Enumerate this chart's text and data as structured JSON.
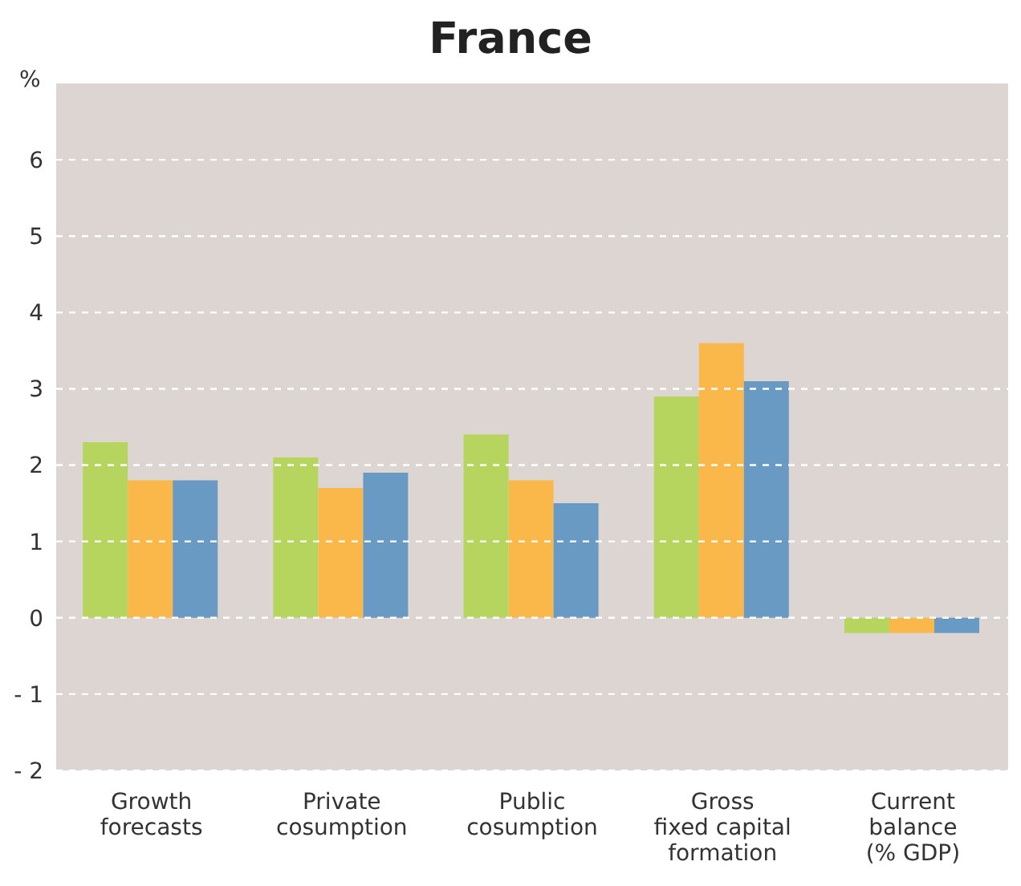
{
  "chart_data": {
    "type": "bar",
    "title": "France",
    "ylabel": "%",
    "categories": [
      "Growth\nforecasts",
      "Private\ncosumption",
      "Public\ncosumption",
      "Gross\nfixed capital\nformation",
      "Current\nbalance\n(% GDP)"
    ],
    "series": [
      {
        "color": "#b5d55e",
        "values": [
          2.3,
          2.1,
          2.4,
          2.9,
          -0.2
        ]
      },
      {
        "color": "#fbb84a",
        "values": [
          1.8,
          1.7,
          1.8,
          3.6,
          -0.2
        ]
      },
      {
        "color": "#699ac4",
        "values": [
          1.8,
          1.9,
          1.5,
          3.1,
          -0.2
        ]
      }
    ],
    "ylim": [
      -2,
      7
    ],
    "yticks": [
      {
        "value": -2,
        "label": "- 2"
      },
      {
        "value": -1,
        "label": "- 1"
      },
      0,
      1,
      2,
      3,
      4,
      5,
      6
    ],
    "grid": "y"
  }
}
